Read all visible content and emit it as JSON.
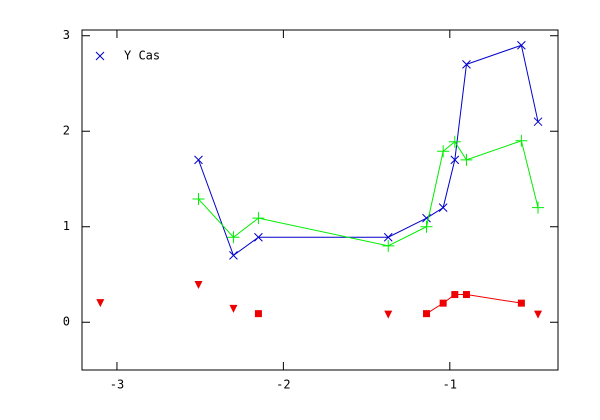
{
  "chart_data": {
    "type": "scatter",
    "xlim": [
      -3.21,
      -0.35
    ],
    "ylim": [
      -0.5,
      3.06
    ],
    "xticks": [
      -3,
      -2,
      -1
    ],
    "yticks": [
      0,
      1,
      2,
      3
    ],
    "legend": "upper left",
    "series": [
      {
        "name": "Y Cas",
        "color": "#0000cc",
        "marker": "x",
        "connected": true,
        "x": [
          -2.51,
          -2.3,
          -2.15,
          -1.37,
          -1.14,
          -1.04,
          -0.97,
          -0.9,
          -0.57,
          -0.47
        ],
        "values": [
          1.7,
          0.7,
          0.89,
          0.89,
          1.09,
          1.2,
          1.7,
          2.7,
          2.9,
          2.1
        ]
      },
      {
        "color": "#00ee00",
        "marker": "plus",
        "connected": true,
        "x": [
          -2.51,
          -2.3,
          -2.15,
          -1.37,
          -1.14,
          -1.04,
          -0.97,
          -0.9,
          -0.57,
          -0.47
        ],
        "values": [
          1.29,
          0.89,
          1.09,
          0.8,
          1.0,
          1.79,
          1.89,
          1.7,
          1.9,
          1.2
        ]
      },
      {
        "color": "#ee0000",
        "marker": "square",
        "connected": true,
        "x": [
          -1.14,
          -1.04,
          -0.97,
          -0.9,
          -0.57
        ],
        "values": [
          0.09,
          0.2,
          0.29,
          0.29,
          0.2
        ]
      },
      {
        "color": "#ee0000",
        "marker": "square",
        "connected": false,
        "x": [
          -2.15
        ],
        "values": [
          0.09
        ]
      },
      {
        "color": "#ee0000",
        "marker": "triangle-down",
        "connected": false,
        "x": [
          -3.1,
          -2.51,
          -2.3,
          -1.37,
          -0.47
        ],
        "values": [
          0.2,
          0.39,
          0.14,
          0.08,
          0.08
        ]
      }
    ]
  }
}
